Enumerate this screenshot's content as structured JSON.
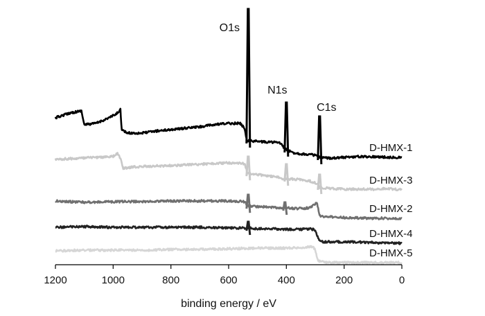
{
  "chart_data": {
    "type": "line",
    "xlabel": "binding energy / eV",
    "ylabel": "",
    "title": "",
    "xlim": [
      1200,
      0
    ],
    "x_reversed": true,
    "y_axis_visible": false,
    "grid": false,
    "xticks": [
      1200,
      1000,
      800,
      600,
      400,
      200,
      0
    ],
    "xtick_labels": [
      "1200",
      "1000",
      "800",
      "600",
      "400",
      "200",
      "0"
    ],
    "peaks": [
      {
        "label": "O1s",
        "x": 532
      },
      {
        "label": "N1s",
        "x": 400
      },
      {
        "label": "C1s",
        "x": 285
      }
    ],
    "series": [
      {
        "name": "D-HMX-1",
        "color": "#000000",
        "offset": 0,
        "points": [
          [
            1200,
            170
          ],
          [
            1150,
            163
          ],
          [
            1110,
            160
          ],
          [
            1100,
            180
          ],
          [
            1060,
            178
          ],
          [
            1020,
            171
          ],
          [
            990,
            165
          ],
          [
            975,
            158
          ],
          [
            970,
            188
          ],
          [
            950,
            192
          ],
          [
            900,
            192
          ],
          [
            850,
            189
          ],
          [
            800,
            187
          ],
          [
            750,
            185
          ],
          [
            700,
            183
          ],
          [
            650,
            180
          ],
          [
            600,
            178
          ],
          [
            560,
            178
          ],
          [
            545,
            185
          ],
          [
            540,
            196
          ],
          [
            536,
            203
          ],
          [
            532,
            203
          ],
          [
            528,
            203
          ],
          [
            500,
            204
          ],
          [
            470,
            205
          ],
          [
            440,
            205
          ],
          [
            420,
            207
          ],
          [
            410,
            212
          ],
          [
            405,
            215
          ],
          [
            400,
            216
          ],
          [
            380,
            220
          ],
          [
            350,
            222
          ],
          [
            320,
            223
          ],
          [
            300,
            224
          ],
          [
            290,
            226
          ],
          [
            285,
            227
          ],
          [
            270,
            228
          ],
          [
            250,
            228
          ],
          [
            200,
            227
          ],
          [
            150,
            226
          ],
          [
            100,
            226
          ],
          [
            50,
            227
          ],
          [
            0,
            227
          ]
        ],
        "peak_tops": [
          [
            532,
            13
          ],
          [
            400,
            148
          ],
          [
            285,
            168
          ]
        ]
      },
      {
        "name": "D-HMX-3",
        "color": "#c8c8c8",
        "offset": 0,
        "points": [
          [
            1200,
            230
          ],
          [
            1100,
            228
          ],
          [
            1000,
            226
          ],
          [
            985,
            221
          ],
          [
            975,
            229
          ],
          [
            965,
            243
          ],
          [
            930,
            241
          ],
          [
            880,
            240
          ],
          [
            800,
            239
          ],
          [
            700,
            237
          ],
          [
            600,
            235
          ],
          [
            545,
            236
          ],
          [
            540,
            243
          ],
          [
            535,
            250
          ],
          [
            500,
            252
          ],
          [
            460,
            254
          ],
          [
            430,
            256
          ],
          [
            410,
            258
          ],
          [
            400,
            258
          ],
          [
            350,
            259
          ],
          [
            320,
            261
          ],
          [
            300,
            264
          ],
          [
            290,
            267
          ],
          [
            285,
            270
          ],
          [
            270,
            271
          ],
          [
            250,
            272
          ],
          [
            200,
            273
          ],
          [
            100,
            273
          ],
          [
            50,
            272
          ],
          [
            0,
            274
          ]
        ],
        "peak_tops": [
          [
            532,
            226
          ],
          [
            400,
            237
          ],
          [
            285,
            252
          ]
        ]
      },
      {
        "name": "D-HMX-2",
        "color": "#707070",
        "offset": 0,
        "points": [
          [
            1200,
            290
          ],
          [
            1100,
            292
          ],
          [
            1000,
            291
          ],
          [
            900,
            291
          ],
          [
            800,
            290
          ],
          [
            700,
            290
          ],
          [
            600,
            290
          ],
          [
            545,
            291
          ],
          [
            535,
            297
          ],
          [
            500,
            298
          ],
          [
            460,
            299
          ],
          [
            420,
            300
          ],
          [
            400,
            300
          ],
          [
            360,
            301
          ],
          [
            320,
            300
          ],
          [
            300,
            295
          ],
          [
            295,
            292
          ],
          [
            290,
            300
          ],
          [
            285,
            311
          ],
          [
            270,
            313
          ],
          [
            250,
            313
          ],
          [
            200,
            314
          ],
          [
            100,
            315
          ],
          [
            0,
            315
          ]
        ],
        "peak_tops": [
          [
            532,
            281
          ],
          [
            405,
            292
          ]
        ]
      },
      {
        "name": "D-HMX-4",
        "color": "#222222",
        "offset": 0,
        "points": [
          [
            1200,
            328
          ],
          [
            1100,
            327
          ],
          [
            1000,
            328
          ],
          [
            900,
            328
          ],
          [
            800,
            328
          ],
          [
            700,
            328
          ],
          [
            600,
            329
          ],
          [
            532,
            329
          ],
          [
            500,
            330
          ],
          [
            450,
            330
          ],
          [
            400,
            331
          ],
          [
            350,
            331
          ],
          [
            320,
            330
          ],
          [
            300,
            332
          ],
          [
            295,
            338
          ],
          [
            290,
            343
          ],
          [
            285,
            348
          ],
          [
            270,
            349
          ],
          [
            250,
            349
          ],
          [
            200,
            349
          ],
          [
            100,
            350
          ],
          [
            0,
            351
          ]
        ],
        "peak_tops": [
          [
            532,
            320
          ]
        ]
      },
      {
        "name": "D-HMX-5",
        "color": "#d6d6d6",
        "offset": 0,
        "points": [
          [
            1200,
            362
          ],
          [
            1100,
            361
          ],
          [
            1000,
            361
          ],
          [
            900,
            361
          ],
          [
            800,
            360
          ],
          [
            700,
            360
          ],
          [
            600,
            359
          ],
          [
            500,
            358
          ],
          [
            400,
            358
          ],
          [
            350,
            357
          ],
          [
            310,
            356
          ],
          [
            300,
            360
          ],
          [
            295,
            369
          ],
          [
            290,
            376
          ],
          [
            280,
            378
          ],
          [
            250,
            379
          ],
          [
            200,
            379
          ],
          [
            100,
            379
          ],
          [
            0,
            379
          ]
        ],
        "peak_tops": []
      }
    ],
    "series_label_x": 90
  }
}
